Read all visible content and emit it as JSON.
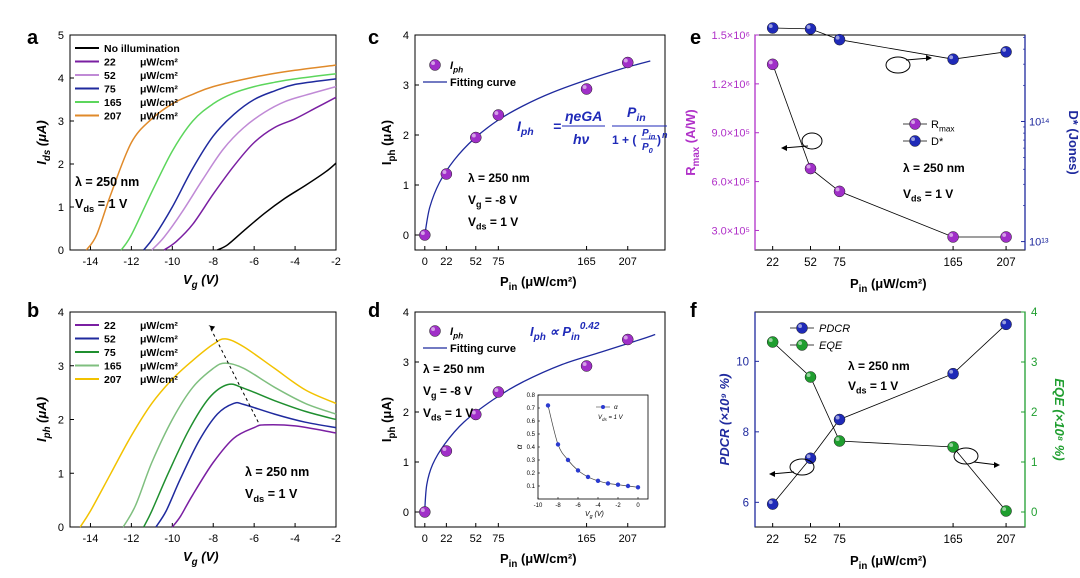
{
  "chart_data": [
    {
      "panel": "a",
      "type": "line",
      "xlabel": "V",
      "xlabel_sub": "g",
      "xlabel_unit": " (V)",
      "ylabel": "I",
      "ylabel_sub": "ds",
      "ylabel_unit": " (μA)",
      "xlim": [
        -15,
        -2
      ],
      "ylim": [
        0,
        5
      ],
      "xticks": [
        -14,
        -12,
        -10,
        -8,
        -6,
        -4,
        -2
      ],
      "yticks": [
        0,
        1,
        2,
        3,
        4,
        5
      ],
      "legend_placement": "top-left",
      "legend_unit": "μW/cm²",
      "series": [
        {
          "name": "No  illumination",
          "color": "#000000",
          "x": [
            -7.8,
            -7.3,
            -6.5,
            -5.5,
            -4.5,
            -3.5,
            -2.5,
            -2.0
          ],
          "y": [
            0,
            0.12,
            0.45,
            0.85,
            1.2,
            1.5,
            1.82,
            2.02
          ]
        },
        {
          "name": "22",
          "color": "#7a1fa2",
          "x": [
            -10.4,
            -9.8,
            -9.0,
            -8.0,
            -7.0,
            -6.0,
            -5.0,
            -4.0,
            -3.0,
            -2.0
          ],
          "y": [
            0,
            0.2,
            0.6,
            1.3,
            1.95,
            2.5,
            2.85,
            3.05,
            3.3,
            3.55
          ]
        },
        {
          "name": "52",
          "color": "#c08ad6",
          "x": [
            -11.0,
            -10.4,
            -9.5,
            -8.5,
            -7.5,
            -6.5,
            -5.5,
            -4.5,
            -3.5,
            -2.0
          ],
          "y": [
            0,
            0.3,
            0.9,
            1.65,
            2.35,
            2.85,
            3.2,
            3.45,
            3.6,
            3.8
          ]
        },
        {
          "name": "75",
          "color": "#1f2a9e",
          "x": [
            -11.4,
            -10.9,
            -10.0,
            -9.0,
            -8.0,
            -7.0,
            -6.0,
            -5.0,
            -4.0,
            -2.0
          ],
          "y": [
            0,
            0.3,
            1.0,
            1.9,
            2.65,
            3.15,
            3.5,
            3.7,
            3.85,
            3.98
          ]
        },
        {
          "name": "165",
          "color": "#5cd65c",
          "x": [
            -12.5,
            -12.0,
            -11.0,
            -10.0,
            -9.0,
            -8.0,
            -7.0,
            -6.0,
            -5.0,
            -4.0,
            -2.0
          ],
          "y": [
            0,
            0.35,
            1.35,
            2.3,
            3.0,
            3.4,
            3.65,
            3.8,
            3.9,
            3.98,
            4.1
          ]
        },
        {
          "name": "207",
          "color": "#e08a2a",
          "x": [
            -14.2,
            -13.7,
            -13.0,
            -12.0,
            -11.0,
            -10.0,
            -9.0,
            -8.0,
            -6.0,
            -4.0,
            -2.0
          ],
          "y": [
            0,
            0.35,
            1.3,
            2.5,
            3.05,
            3.4,
            3.62,
            3.8,
            4.02,
            4.18,
            4.3
          ]
        }
      ],
      "annotations": [
        "λ = 250 nm",
        "V",
        "ds",
        " = 1 V"
      ]
    },
    {
      "panel": "b",
      "type": "line",
      "xlabel": "V",
      "xlabel_sub": "g",
      "xlabel_unit": " (V)",
      "ylabel": "I",
      "ylabel_sub": "ph",
      "ylabel_unit": " (μA)",
      "xlim": [
        -15,
        -2
      ],
      "ylim": [
        0,
        4
      ],
      "xticks": [
        -14,
        -12,
        -10,
        -8,
        -6,
        -4,
        -2
      ],
      "yticks": [
        0,
        1,
        2,
        3,
        4
      ],
      "legend_placement": "top-left",
      "legend_unit": "μW/cm²",
      "series": [
        {
          "name": "22",
          "color": "#7a1fa2",
          "x": [
            -10.0,
            -9.6,
            -9.0,
            -8.0,
            -7.0,
            -6.0,
            -5.5,
            -4.0,
            -2.0
          ],
          "y": [
            0,
            0.2,
            0.6,
            1.2,
            1.65,
            1.85,
            1.9,
            1.88,
            1.75
          ]
        },
        {
          "name": "52",
          "color": "#1f2a9e",
          "x": [
            -10.8,
            -10.3,
            -9.6,
            -8.7,
            -7.8,
            -7.0,
            -6.5,
            -5.0,
            -3.5,
            -2.0
          ],
          "y": [
            0,
            0.3,
            0.9,
            1.6,
            2.1,
            2.3,
            2.28,
            2.1,
            1.95,
            1.85
          ]
        },
        {
          "name": "75",
          "color": "#1f8f2f",
          "x": [
            -11.4,
            -11.0,
            -10.2,
            -9.2,
            -8.2,
            -7.3,
            -6.5,
            -5.0,
            -3.5,
            -2.0
          ],
          "y": [
            0,
            0.3,
            1.0,
            1.8,
            2.4,
            2.65,
            2.58,
            2.35,
            2.15,
            2.0
          ]
        },
        {
          "name": "165",
          "color": "#7fbf7f",
          "x": [
            -12.4,
            -11.8,
            -11.0,
            -10.0,
            -9.0,
            -8.0,
            -7.4,
            -6.5,
            -5.0,
            -3.5,
            -2.0
          ],
          "y": [
            0,
            0.4,
            1.2,
            2.0,
            2.6,
            2.95,
            3.05,
            2.95,
            2.6,
            2.3,
            2.1
          ]
        },
        {
          "name": "207",
          "color": "#f2c200",
          "x": [
            -14.5,
            -14.0,
            -13.0,
            -12.0,
            -11.0,
            -10.0,
            -9.0,
            -8.0,
            -7.4,
            -6.5,
            -5.0,
            -3.5,
            -2.0
          ],
          "y": [
            0,
            0.3,
            1.0,
            1.7,
            2.3,
            2.75,
            3.1,
            3.4,
            3.5,
            3.35,
            2.95,
            2.55,
            2.3
          ]
        }
      ],
      "annotations": [
        "λ = 250 nm",
        "V",
        "ds",
        " = 1 V"
      ]
    },
    {
      "panel": "c",
      "type": "scatter",
      "xlabel": "P",
      "xlabel_sub": "in",
      "xlabel_unit": " (μW/cm²)",
      "ylabel": "I",
      "ylabel_sub": "ph",
      "ylabel_unit": " (μA)",
      "xlim": [
        -10,
        245
      ],
      "ylim": [
        -0.3,
        4
      ],
      "xticks": [
        0,
        22,
        52,
        75,
        165,
        207
      ],
      "yticks": [
        0,
        1,
        2,
        3,
        4
      ],
      "legend_placement": "top-left",
      "series": [
        {
          "name": "I",
          "name_sub": "ph",
          "color": "#a02fc8",
          "x": [
            0,
            22,
            52,
            75,
            165,
            207
          ],
          "y": [
            0,
            1.22,
            1.95,
            2.4,
            2.92,
            3.45
          ]
        },
        {
          "name": "Fitting curve",
          "color": "#1f2a9e",
          "x": [
            0,
            5,
            15,
            30,
            50,
            75,
            100,
            130,
            165,
            200,
            230
          ],
          "y": [
            0,
            0.55,
            1.05,
            1.5,
            1.92,
            2.3,
            2.58,
            2.85,
            3.1,
            3.32,
            3.48
          ]
        }
      ],
      "annotations": [
        "λ = 250 nm",
        "V",
        "g",
        " = -8 V",
        "V",
        "ds",
        " = 1 V"
      ],
      "formula": {
        "lhs": "I",
        "lhs_sub": "ph",
        "eq": "=",
        "num1": "ηeGA",
        "den1": "hν",
        "num2": "P",
        "num2_sub": "in",
        "den2_a": "1 + (",
        "den2_frac_top": "P",
        "den2_frac_top_sub": "in",
        "den2_frac_bot": "P",
        "den2_frac_bot_sub": "0",
        "den2_b": ")",
        "den2_exp": "n"
      }
    },
    {
      "panel": "d",
      "type": "scatter",
      "xlabel": "P",
      "xlabel_sub": "in",
      "xlabel_unit": " (μW/cm²)",
      "ylabel": "I",
      "ylabel_sub": "ph",
      "ylabel_unit": " (μA)",
      "xlim": [
        -10,
        245
      ],
      "ylim": [
        -0.3,
        4
      ],
      "xticks": [
        0,
        22,
        52,
        75,
        165,
        207
      ],
      "yticks": [
        0,
        1,
        2,
        3,
        4
      ],
      "legend_placement": "top-left",
      "series": [
        {
          "name": "I",
          "name_sub": "ph",
          "color": "#a02fc8",
          "x": [
            0,
            22,
            52,
            75,
            165,
            207
          ],
          "y": [
            0,
            1.22,
            1.95,
            2.4,
            2.92,
            3.45
          ]
        },
        {
          "name": "Fitting curve",
          "color": "#1f2a9e",
          "x": [
            0,
            2,
            8,
            20,
            40,
            70,
            100,
            140,
            180,
            220,
            235
          ],
          "y": [
            0.05,
            0.55,
            0.95,
            1.35,
            1.8,
            2.25,
            2.6,
            2.95,
            3.2,
            3.45,
            3.55
          ]
        }
      ],
      "annotations": [
        "λ = 250 nm",
        "V",
        "g",
        " = -8 V",
        "V",
        "ds",
        " = 1 V"
      ],
      "formula": {
        "lhs": "I",
        "lhs_sub": "ph",
        "sym": " ∝ ",
        "rhs": "P",
        "rhs_sub": "in",
        "rhs_sup": "0.42"
      },
      "inset": {
        "type": "line",
        "xlabel": "V",
        "xlabel_sub": "g",
        "xlabel_unit": " (V)",
        "ylabel": "α",
        "xlim": [
          -10,
          1
        ],
        "ylim": [
          0.0,
          0.8
        ],
        "xticks": [
          -10,
          -8,
          -6,
          -4,
          -2,
          0
        ],
        "yticks": [
          0.1,
          0.2,
          0.3,
          0.4,
          0.5,
          0.6,
          0.7,
          0.8
        ],
        "legend_label": "α",
        "legend_note": "V",
        "legend_note_sub": "ds",
        "legend_note_tail": " = 1 V",
        "x": [
          -9,
          -8,
          -7,
          -6,
          -5,
          -4,
          -3,
          -2,
          -1,
          0
        ],
        "y": [
          0.72,
          0.42,
          0.3,
          0.22,
          0.17,
          0.14,
          0.12,
          0.11,
          0.1,
          0.09
        ],
        "color": "#2a3ad0"
      }
    },
    {
      "panel": "e",
      "type": "scatter",
      "xlabel": "P",
      "xlabel_sub": "in",
      "xlabel_unit": " (μW/cm²)",
      "ylabel_left": "R",
      "ylabel_left_sub": "max",
      "ylabel_left_unit": " (A/W)",
      "ylabel_right": "D* (Jones)",
      "xticks": [
        22,
        52,
        75,
        165,
        207
      ],
      "yticks_left": [
        "3.0×10⁵",
        "6.0×10⁵",
        "9.0×10⁵",
        "1.2×10⁶",
        "1.5×10⁶"
      ],
      "yticks_left_values": [
        300000,
        600000,
        900000,
        1200000,
        1500000
      ],
      "ylim_left": [
        180000,
        1500000
      ],
      "yticks_right": [
        "10¹³",
        "10¹⁴"
      ],
      "yticks_right_values": [
        13,
        14
      ],
      "ylim_right_log10": [
        12.93,
        14.72
      ],
      "legend_placement": "center-right",
      "series": [
        {
          "name": "R",
          "name_sub": "max",
          "color": "#a02fc8",
          "axis": "left",
          "x": [
            22,
            52,
            75,
            165,
            207
          ],
          "y": [
            1320000,
            680000,
            540000,
            260000,
            260000
          ]
        },
        {
          "name": "D*",
          "color": "#1f2ab8",
          "axis": "right",
          "x": [
            22,
            52,
            75,
            165,
            207
          ],
          "y": [
            600000000000000,
            590000000000000,
            480000000000000,
            330000000000000,
            380000000000000
          ]
        }
      ],
      "annotations": [
        "λ = 250 nm",
        "V",
        "ds",
        " = 1 V"
      ],
      "colors": {
        "left_axis": "#b030c8",
        "right_axis": "#1f2a9e"
      }
    },
    {
      "panel": "f",
      "type": "scatter",
      "xlabel": "P",
      "xlabel_sub": "in",
      "xlabel_unit": " (μW/cm²)",
      "ylabel_left": "PDCR",
      "ylabel_left_unit": " (×10⁹ %)",
      "ylabel_right": "EQE",
      "ylabel_right_unit": " (×10⁸ %)",
      "xticks": [
        22,
        52,
        75,
        165,
        207
      ],
      "yticks_left": [
        6,
        8,
        10
      ],
      "ylim_left": [
        5.3,
        11.4
      ],
      "yticks_right": [
        0,
        1,
        2,
        3,
        4
      ],
      "ylim_right": [
        -0.3,
        4
      ],
      "legend_placement": "top-left",
      "series": [
        {
          "name": "PDCR",
          "color": "#1f2ab8",
          "axis": "left",
          "x": [
            22,
            52,
            75,
            165,
            207
          ],
          "y": [
            5.95,
            7.25,
            8.35,
            9.65,
            11.05
          ]
        },
        {
          "name": "EQE",
          "color": "#1f9e2f",
          "axis": "right",
          "x": [
            22,
            52,
            75,
            165,
            207
          ],
          "y": [
            3.4,
            2.7,
            1.42,
            1.3,
            0.02
          ]
        }
      ],
      "annotations": [
        "λ = 250 nm",
        "V",
        "ds",
        " = 1 V"
      ],
      "colors": {
        "left_axis": "#1f2a9e",
        "right_axis": "#1f9e2f"
      }
    }
  ],
  "panel_letters": [
    "a",
    "b",
    "c",
    "d",
    "e",
    "f"
  ]
}
